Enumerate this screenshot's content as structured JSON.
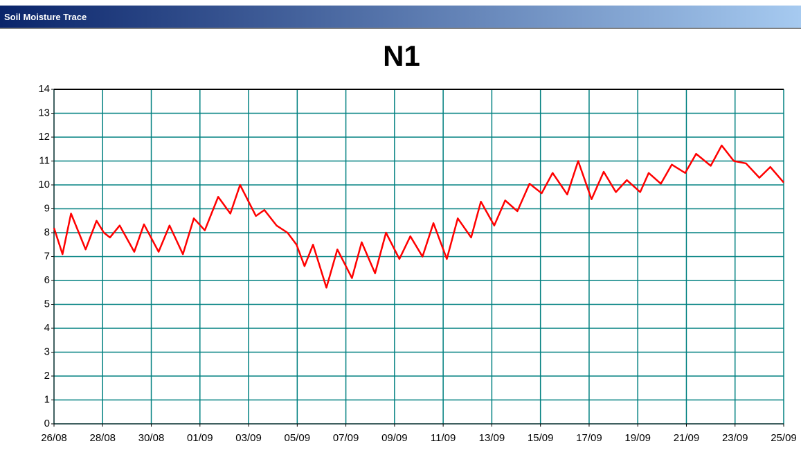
{
  "window": {
    "title": "Soil Moisture Trace"
  },
  "chart_data": {
    "type": "line",
    "title": "N1",
    "xlim": [
      0,
      30
    ],
    "xticks": [
      {
        "value": 0,
        "label": "26/08"
      },
      {
        "value": 2,
        "label": "28/08"
      },
      {
        "value": 4,
        "label": "30/08"
      },
      {
        "value": 6,
        "label": "01/09"
      },
      {
        "value": 8,
        "label": "03/09"
      },
      {
        "value": 10,
        "label": "05/09"
      },
      {
        "value": 12,
        "label": "07/09"
      },
      {
        "value": 14,
        "label": "09/09"
      },
      {
        "value": 16,
        "label": "11/09"
      },
      {
        "value": 18,
        "label": "13/09"
      },
      {
        "value": 20,
        "label": "15/09"
      },
      {
        "value": 22,
        "label": "17/09"
      },
      {
        "value": 24,
        "label": "19/09"
      },
      {
        "value": 26,
        "label": "21/09"
      },
      {
        "value": 28,
        "label": "23/09"
      },
      {
        "value": 30,
        "label": "25/09"
      }
    ],
    "ylim": [
      0,
      14
    ],
    "yticks": [
      0,
      1,
      2,
      3,
      4,
      5,
      6,
      7,
      8,
      9,
      10,
      11,
      12,
      13,
      14
    ],
    "grid": true,
    "series": [
      {
        "color": "#ff0000",
        "x": [
          0,
          0.35,
          0.7,
          1.3,
          1.75,
          2.05,
          2.3,
          2.7,
          3.3,
          3.7,
          4.3,
          4.75,
          5.3,
          5.75,
          6.2,
          6.75,
          7.25,
          7.65,
          8.3,
          8.65,
          9.15,
          9.6,
          9.97,
          10.3,
          10.65,
          11.2,
          11.65,
          12.25,
          12.65,
          13.2,
          13.65,
          14.2,
          14.65,
          15.15,
          15.6,
          16.15,
          16.6,
          17.15,
          17.55,
          18.1,
          18.55,
          19.05,
          19.55,
          20.05,
          20.5,
          21.1,
          21.55,
          22.1,
          22.6,
          23.1,
          23.55,
          24.1,
          24.45,
          24.95,
          25.4,
          25.95,
          26.4,
          27.0,
          27.45,
          27.95,
          28.45,
          29.0,
          29.45,
          30
        ],
        "values": [
          8.2,
          7.1,
          8.8,
          7.3,
          8.5,
          8.0,
          7.8,
          8.3,
          7.2,
          8.35,
          7.2,
          8.3,
          7.1,
          8.6,
          8.1,
          9.5,
          8.8,
          10.0,
          8.7,
          8.95,
          8.3,
          8.0,
          7.5,
          6.6,
          7.5,
          5.7,
          7.3,
          6.1,
          7.6,
          6.3,
          8.0,
          6.9,
          7.85,
          7.0,
          8.4,
          6.9,
          8.6,
          7.8,
          9.3,
          8.3,
          9.35,
          8.9,
          10.05,
          9.65,
          10.5,
          9.6,
          11.0,
          9.4,
          10.55,
          9.7,
          10.2,
          9.7,
          10.5,
          10.05,
          10.85,
          10.5,
          11.3,
          10.8,
          11.65,
          11.0,
          10.9,
          10.3,
          10.75,
          10.1
        ]
      }
    ]
  }
}
